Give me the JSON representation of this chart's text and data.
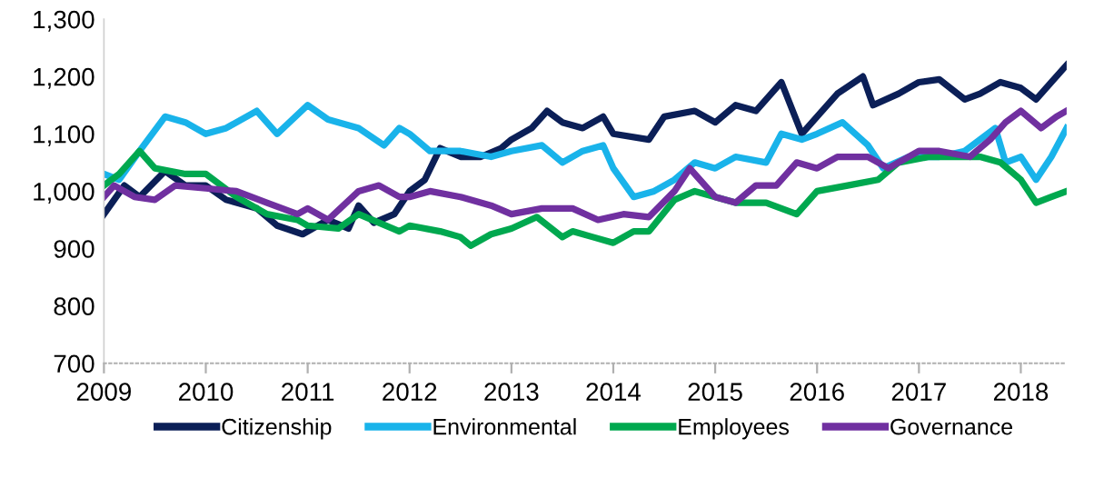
{
  "chart_data": {
    "type": "line",
    "legend": "bottom",
    "grid": false,
    "line_style": "solid",
    "marker": "none",
    "xlim": [
      2009,
      2018.45
    ],
    "xticks": [
      2009,
      2010,
      2011,
      2012,
      2013,
      2014,
      2015,
      2016,
      2017,
      2018
    ],
    "ylim": [
      700,
      1300
    ],
    "yticks": [
      {
        "value": 700,
        "label": "700"
      },
      {
        "value": 800,
        "label": "800"
      },
      {
        "value": 900,
        "label": "900"
      },
      {
        "value": 1000,
        "label": "1,000"
      },
      {
        "value": 1100,
        "label": "1,100"
      },
      {
        "value": 1200,
        "label": "1,200"
      },
      {
        "value": 1300,
        "label": "1,300"
      }
    ],
    "series": [
      {
        "name": "Citizenship",
        "color": "#0b1f57",
        "x": [
          2009,
          2009.2,
          2009.35,
          2009.6,
          2009.8,
          2010,
          2010.2,
          2010.5,
          2010.7,
          2010.95,
          2011.2,
          2011.4,
          2011.5,
          2011.65,
          2011.85,
          2012,
          2012.15,
          2012.3,
          2012.5,
          2012.7,
          2012.9,
          2013,
          2013.2,
          2013.35,
          2013.5,
          2013.7,
          2013.9,
          2014,
          2014.35,
          2014.5,
          2014.8,
          2015,
          2015.2,
          2015.4,
          2015.65,
          2015.85,
          2016,
          2016.2,
          2016.45,
          2016.55,
          2016.8,
          2017,
          2017.2,
          2017.45,
          2017.6,
          2017.8,
          2018,
          2018.15,
          2018.3,
          2018.45
        ],
        "values": [
          960,
          1010,
          990,
          1035,
          1010,
          1010,
          985,
          970,
          940,
          925,
          950,
          935,
          975,
          945,
          960,
          1000,
          1020,
          1075,
          1060,
          1060,
          1075,
          1090,
          1110,
          1140,
          1120,
          1110,
          1130,
          1100,
          1090,
          1130,
          1140,
          1120,
          1150,
          1140,
          1190,
          1100,
          1130,
          1170,
          1200,
          1150,
          1170,
          1190,
          1195,
          1160,
          1170,
          1190,
          1180,
          1160,
          1190,
          1220
        ]
      },
      {
        "name": "Environmental",
        "color": "#19b3ea",
        "x": [
          2009,
          2009.15,
          2009.35,
          2009.6,
          2009.8,
          2010,
          2010.2,
          2010.5,
          2010.7,
          2011,
          2011.2,
          2011.5,
          2011.75,
          2011.9,
          2012,
          2012.2,
          2012.5,
          2012.8,
          2013,
          2013.3,
          2013.5,
          2013.7,
          2013.9,
          2014,
          2014.2,
          2014.4,
          2014.6,
          2014.8,
          2015,
          2015.2,
          2015.5,
          2015.65,
          2015.85,
          2016,
          2016.25,
          2016.5,
          2016.65,
          2016.9,
          2017.2,
          2017.45,
          2017.75,
          2017.85,
          2018,
          2018.15,
          2018.3,
          2018.45
        ],
        "values": [
          1030,
          1020,
          1070,
          1130,
          1120,
          1100,
          1110,
          1140,
          1100,
          1150,
          1125,
          1110,
          1080,
          1110,
          1100,
          1070,
          1070,
          1060,
          1070,
          1080,
          1050,
          1070,
          1080,
          1040,
          990,
          1000,
          1020,
          1050,
          1040,
          1060,
          1050,
          1100,
          1090,
          1100,
          1120,
          1080,
          1040,
          1060,
          1060,
          1070,
          1110,
          1050,
          1060,
          1020,
          1060,
          1110
        ]
      },
      {
        "name": "Employees",
        "color": "#00a84f",
        "x": [
          2009,
          2009.15,
          2009.35,
          2009.5,
          2009.8,
          2010,
          2010.3,
          2010.6,
          2010.9,
          2011,
          2011.3,
          2011.5,
          2011.7,
          2011.9,
          2012,
          2012.3,
          2012.5,
          2012.6,
          2012.8,
          2013,
          2013.25,
          2013.5,
          2013.6,
          2013.8,
          2014,
          2014.2,
          2014.35,
          2014.6,
          2014.8,
          2015,
          2015.2,
          2015.5,
          2015.8,
          2016,
          2016.3,
          2016.6,
          2016.8,
          2017.1,
          2017.4,
          2017.6,
          2017.8,
          2018,
          2018.15,
          2018.3,
          2018.45
        ],
        "values": [
          1010,
          1030,
          1070,
          1040,
          1030,
          1030,
          990,
          960,
          950,
          940,
          935,
          960,
          945,
          930,
          940,
          930,
          920,
          905,
          925,
          935,
          955,
          920,
          930,
          920,
          910,
          930,
          930,
          985,
          1000,
          990,
          980,
          980,
          960,
          1000,
          1010,
          1020,
          1050,
          1060,
          1060,
          1060,
          1050,
          1020,
          980,
          990,
          1000
        ]
      },
      {
        "name": "Governance",
        "color": "#7030a0",
        "x": [
          2009,
          2009.1,
          2009.3,
          2009.5,
          2009.7,
          2010,
          2010.3,
          2010.6,
          2010.9,
          2011,
          2011.2,
          2011.5,
          2011.7,
          2011.9,
          2012,
          2012.2,
          2012.5,
          2012.8,
          2013,
          2013.3,
          2013.6,
          2013.85,
          2014.1,
          2014.35,
          2014.6,
          2014.75,
          2015,
          2015.2,
          2015.4,
          2015.6,
          2015.8,
          2016,
          2016.2,
          2016.5,
          2016.7,
          2017,
          2017.2,
          2017.5,
          2017.7,
          2017.85,
          2018,
          2018.2,
          2018.35,
          2018.45
        ],
        "values": [
          990,
          1010,
          990,
          985,
          1010,
          1005,
          1000,
          980,
          960,
          970,
          950,
          1000,
          1010,
          990,
          990,
          1000,
          990,
          975,
          960,
          970,
          970,
          950,
          960,
          955,
          1000,
          1040,
          990,
          980,
          1010,
          1010,
          1050,
          1040,
          1060,
          1060,
          1040,
          1070,
          1070,
          1060,
          1090,
          1120,
          1140,
          1110,
          1130,
          1140
        ]
      }
    ]
  }
}
